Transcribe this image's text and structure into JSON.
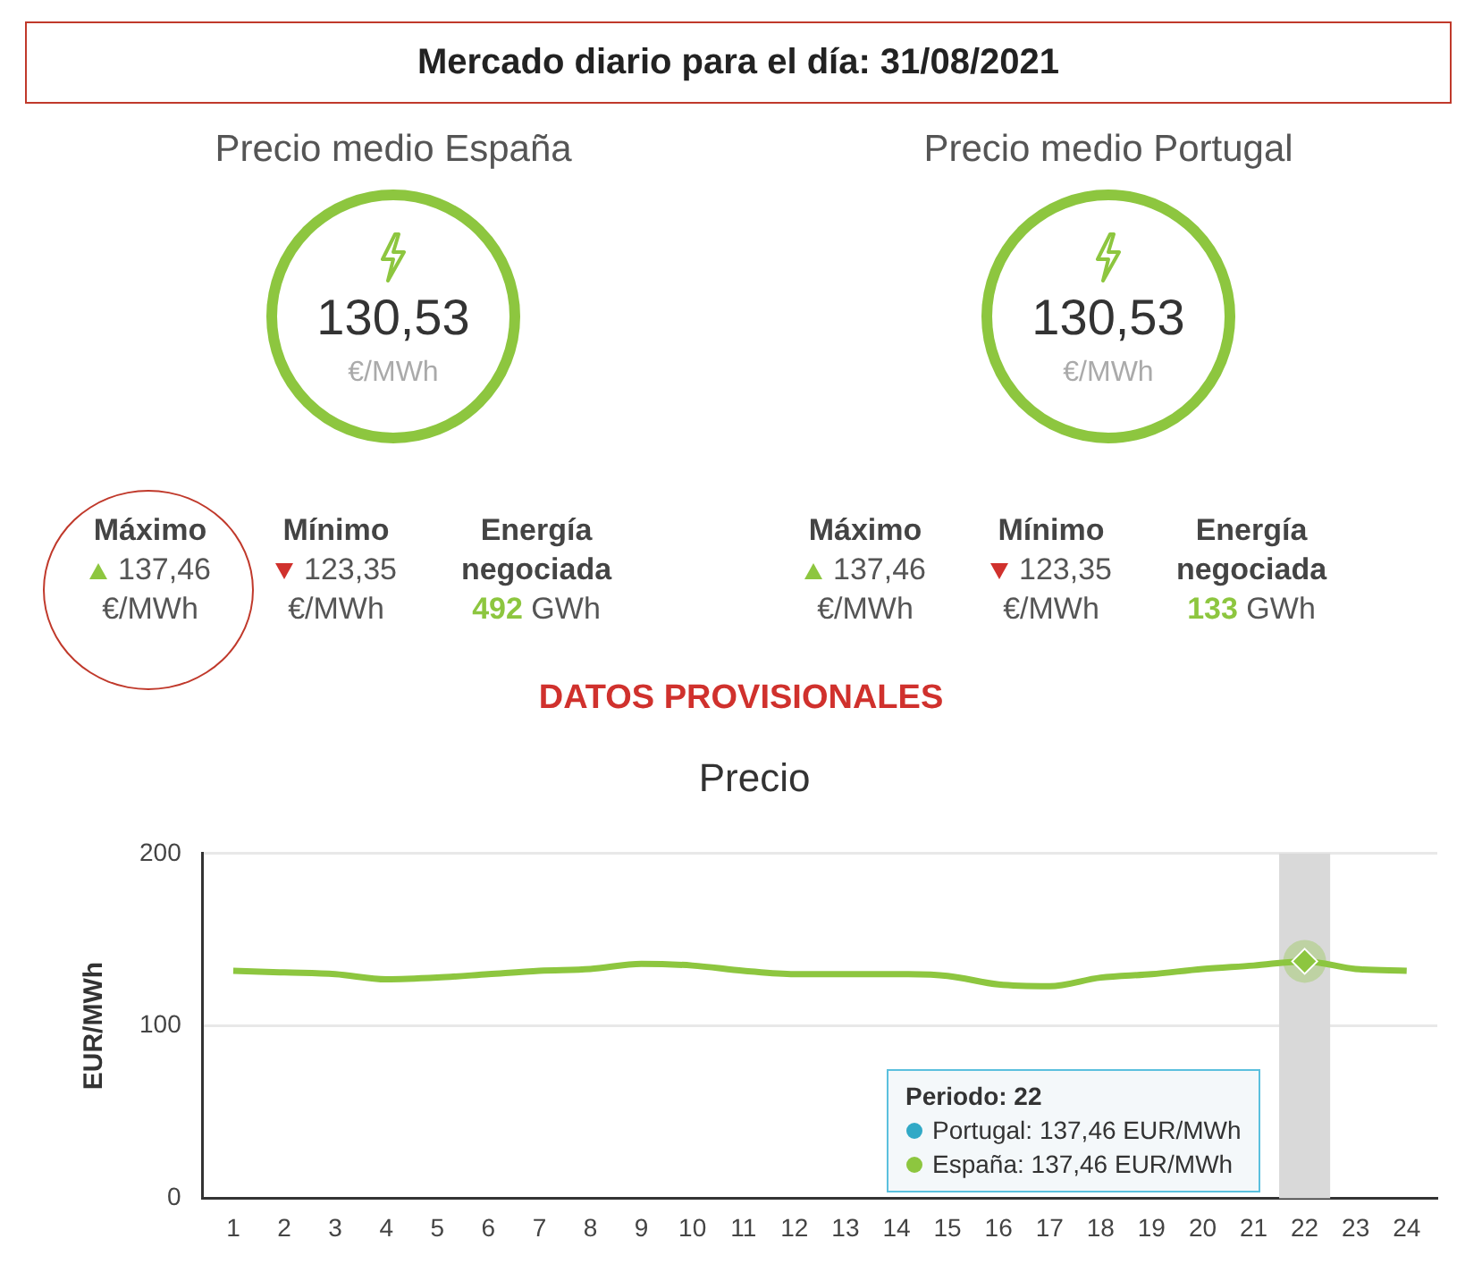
{
  "chart_data": [
    {
      "type": "other",
      "title": "Mercado diario para el día: 31/08/2021",
      "annotations": [
        "Precio medio España",
        "130,53",
        "€/MWh",
        "Máximo",
        "137,46",
        "€/MWh",
        "Mínimo",
        "123,35",
        "€/MWh",
        "Energía negociada",
        "492",
        "GWh",
        "Precio medio Portugal",
        "130,53",
        "€/MWh",
        "Máximo",
        "137,46",
        "€/MWh",
        "Mínimo",
        "123,35",
        "€/MWh",
        "Energía negociada",
        "133",
        "GWh",
        "DATOS PROVISIONALES"
      ]
    },
    {
      "type": "line",
      "title": "Precio",
      "ylabel": "EUR/MWh",
      "x": [
        1,
        2,
        3,
        4,
        5,
        6,
        7,
        8,
        9,
        10,
        11,
        12,
        13,
        14,
        15,
        16,
        17,
        18,
        19,
        20,
        21,
        22,
        23,
        24
      ],
      "series": [
        {
          "color": "#8dc63f",
          "values": [
            132,
            131,
            130,
            127,
            128,
            130,
            132,
            133,
            136,
            135,
            132,
            130,
            130,
            130,
            129,
            124,
            123,
            128,
            130,
            133,
            135,
            137.46,
            133,
            132
          ]
        }
      ],
      "xlim": [
        0.4,
        24.6
      ],
      "xticks": [
        1,
        2,
        3,
        4,
        5,
        6,
        7,
        8,
        9,
        10,
        11,
        12,
        13,
        14,
        15,
        16,
        17,
        18,
        19,
        20,
        21,
        22,
        23,
        24
      ],
      "ylim": [
        0,
        200
      ],
      "yticks": [
        0,
        100,
        200
      ],
      "grid": "y",
      "legend": false,
      "marker": "none",
      "line_style": "solid",
      "bands": [
        {
          "axis": "x",
          "from": 21.5,
          "to": 22.5,
          "color": "#d9d9d9"
        }
      ],
      "annotations": [
        "Periodo: 22",
        "Portugal: 137,46 EUR/MWh",
        "España: 137,46 EUR/MWh"
      ]
    }
  ]
}
